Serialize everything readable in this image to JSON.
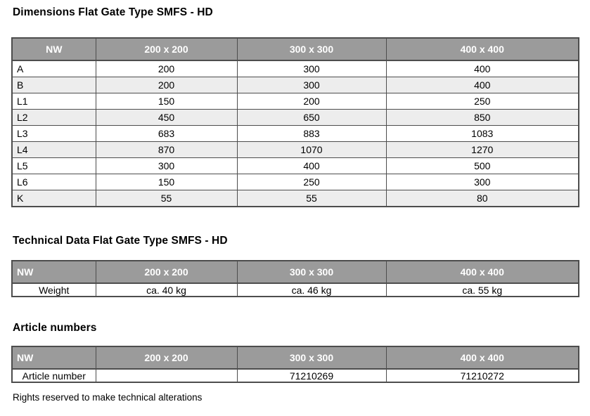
{
  "dimensions": {
    "title": "Dimensions Flat Gate Type SMFS - HD",
    "headers": [
      "NW",
      "200 x 200",
      "300 x 300",
      "400 x 400"
    ],
    "rows": [
      [
        "A",
        "200",
        "300",
        "400"
      ],
      [
        "B",
        "200",
        "300",
        "400"
      ],
      [
        "L1",
        "150",
        "200",
        "250"
      ],
      [
        "L2",
        "450",
        "650",
        "850"
      ],
      [
        "L3",
        "683",
        "883",
        "1083"
      ],
      [
        "L4",
        "870",
        "1070",
        "1270"
      ],
      [
        "L5",
        "300",
        "400",
        "500"
      ],
      [
        "L6",
        "150",
        "250",
        "300"
      ],
      [
        "K",
        "55",
        "55",
        "80"
      ]
    ]
  },
  "technical": {
    "title": "Technical Data Flat Gate Type SMFS - HD",
    "headers": [
      "NW",
      "200 x 200",
      "300 x 300",
      "400 x 400"
    ],
    "rows": [
      [
        "Weight",
        "ca. 40 kg",
        "ca. 46 kg",
        "ca. 55 kg"
      ]
    ]
  },
  "articles": {
    "title": "Article numbers",
    "headers": [
      "NW",
      "200 x 200",
      "300 x 300",
      "400 x 400"
    ],
    "rows": [
      [
        "Article number",
        "",
        "71210269",
        "71210272"
      ]
    ]
  },
  "footer": "Rights reserved to make technical alterations",
  "colors": {
    "header_bg": "#9b9b9b",
    "header_text": "#ffffff",
    "alt_row_bg": "#ededed",
    "border": "#4d4d4d",
    "page_bg": "#ffffff"
  }
}
